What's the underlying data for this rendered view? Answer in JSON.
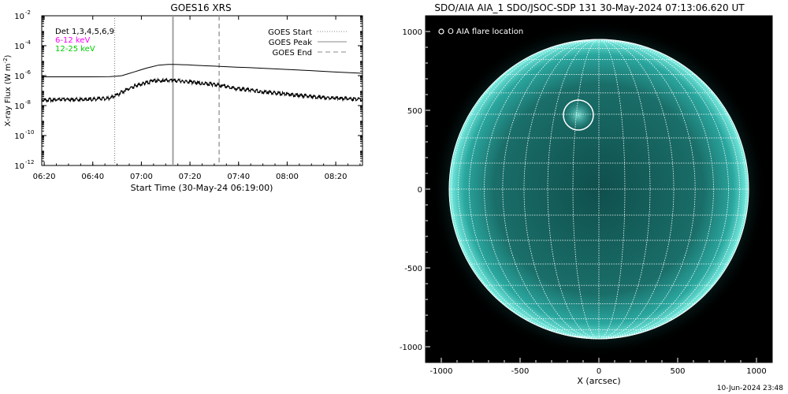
{
  "chart_data": [
    {
      "type": "line",
      "title": "GOES16 XRS",
      "xlabel": "Start Time (30-May-24 06:19:00)",
      "ylabel": "X-ray Flux (W m",
      "ylabel_sup": "-2",
      "ylabel_close": ")",
      "x_unit": "minutes after 06:19:00",
      "xlim": [
        0,
        132
      ],
      "ylim_log10": [
        -12,
        -2
      ],
      "y_scale": "log",
      "x_ticks": [
        {
          "x": 1,
          "label": "06:20"
        },
        {
          "x": 21,
          "label": "06:40"
        },
        {
          "x": 41,
          "label": "07:00"
        },
        {
          "x": 61,
          "label": "07:20"
        },
        {
          "x": 81,
          "label": "07:40"
        },
        {
          "x": 101,
          "label": "08:00"
        },
        {
          "x": 121,
          "label": "08:20"
        }
      ],
      "y_ticks": [
        {
          "exp": -2,
          "label": "10",
          "sup": "-2"
        },
        {
          "exp": -4,
          "label": "10",
          "sup": "-4"
        },
        {
          "exp": -6,
          "label": "10",
          "sup": "-6"
        },
        {
          "exp": -8,
          "label": "10",
          "sup": "-8"
        },
        {
          "exp": -10,
          "label": "10",
          "sup": "-10"
        },
        {
          "exp": -12,
          "label": "10",
          "sup": "-12"
        }
      ],
      "channel_labels": [
        {
          "text": "Det 1,3,4,5,6,9",
          "color": "#000000"
        },
        {
          "text": "6-12 keV",
          "color": "#ff00ff"
        },
        {
          "text": "12-25 keV",
          "color": "#00cc00"
        }
      ],
      "legend": [
        {
          "text": "GOES Start",
          "style": "dotted"
        },
        {
          "text": "GOES Peak",
          "style": "solid"
        },
        {
          "text": "GOES End",
          "style": "dashed"
        }
      ],
      "legend_position": "top-right",
      "markers": {
        "start": 30,
        "peak": 54,
        "end": 73
      },
      "series": [
        {
          "color": "#000000",
          "x": [
            0,
            10,
            20,
            28,
            33,
            38,
            43,
            48,
            52,
            56,
            60,
            65,
            70,
            80,
            90,
            100,
            110,
            120,
            132
          ],
          "log10_y": [
            -6.08,
            -6.08,
            -6.08,
            -6.07,
            -6.0,
            -5.75,
            -5.5,
            -5.3,
            -5.25,
            -5.26,
            -5.28,
            -5.32,
            -5.36,
            -5.43,
            -5.5,
            -5.58,
            -5.66,
            -5.75,
            -5.84
          ]
        },
        {
          "color": "#000000",
          "noisy": true,
          "x": [
            0,
            10,
            20,
            28,
            31,
            34,
            38,
            42,
            46,
            50,
            54,
            58,
            62,
            66,
            70,
            75,
            80,
            90,
            100,
            110,
            120,
            132
          ],
          "log10_y": [
            -7.62,
            -7.6,
            -7.58,
            -7.5,
            -7.3,
            -7.0,
            -6.7,
            -6.5,
            -6.35,
            -6.3,
            -6.32,
            -6.35,
            -6.45,
            -6.52,
            -6.58,
            -6.7,
            -6.85,
            -7.05,
            -7.22,
            -7.38,
            -7.5,
            -7.58
          ]
        }
      ]
    },
    {
      "type": "image",
      "title": "SDO/AIA AIA_1 SDO/JSOC-SDP 131 30-May-2024 07:13:06.620 UT",
      "xlabel": "X (arcsec)",
      "xlim": [
        -1100,
        1100
      ],
      "ylim": [
        -1100,
        1100
      ],
      "x_ticks": [
        {
          "v": -1000,
          "label": "-1000"
        },
        {
          "v": -500,
          "label": "-500"
        },
        {
          "v": 0,
          "label": "0"
        },
        {
          "v": 500,
          "label": "500"
        },
        {
          "v": 1000,
          "label": "1000"
        }
      ],
      "y_ticks": [
        {
          "v": -1000,
          "label": "-1000"
        },
        {
          "v": -500,
          "label": "-500"
        },
        {
          "v": 0,
          "label": "0"
        },
        {
          "v": 500,
          "label": "500"
        },
        {
          "v": 1000,
          "label": "1000"
        }
      ],
      "legend": "O AIA flare location",
      "solar_radius_arcsec": 950,
      "flare_location_arcsec": [
        -130,
        470
      ],
      "flare_circle_radius_arcsec": 95,
      "disk_color": "#1f8c86",
      "limb_color": "#7ef0e4",
      "grid": true,
      "grid_spacing_deg": 10
    }
  ],
  "footer": {
    "timestamp": "10-Jun-2024 23:48"
  }
}
